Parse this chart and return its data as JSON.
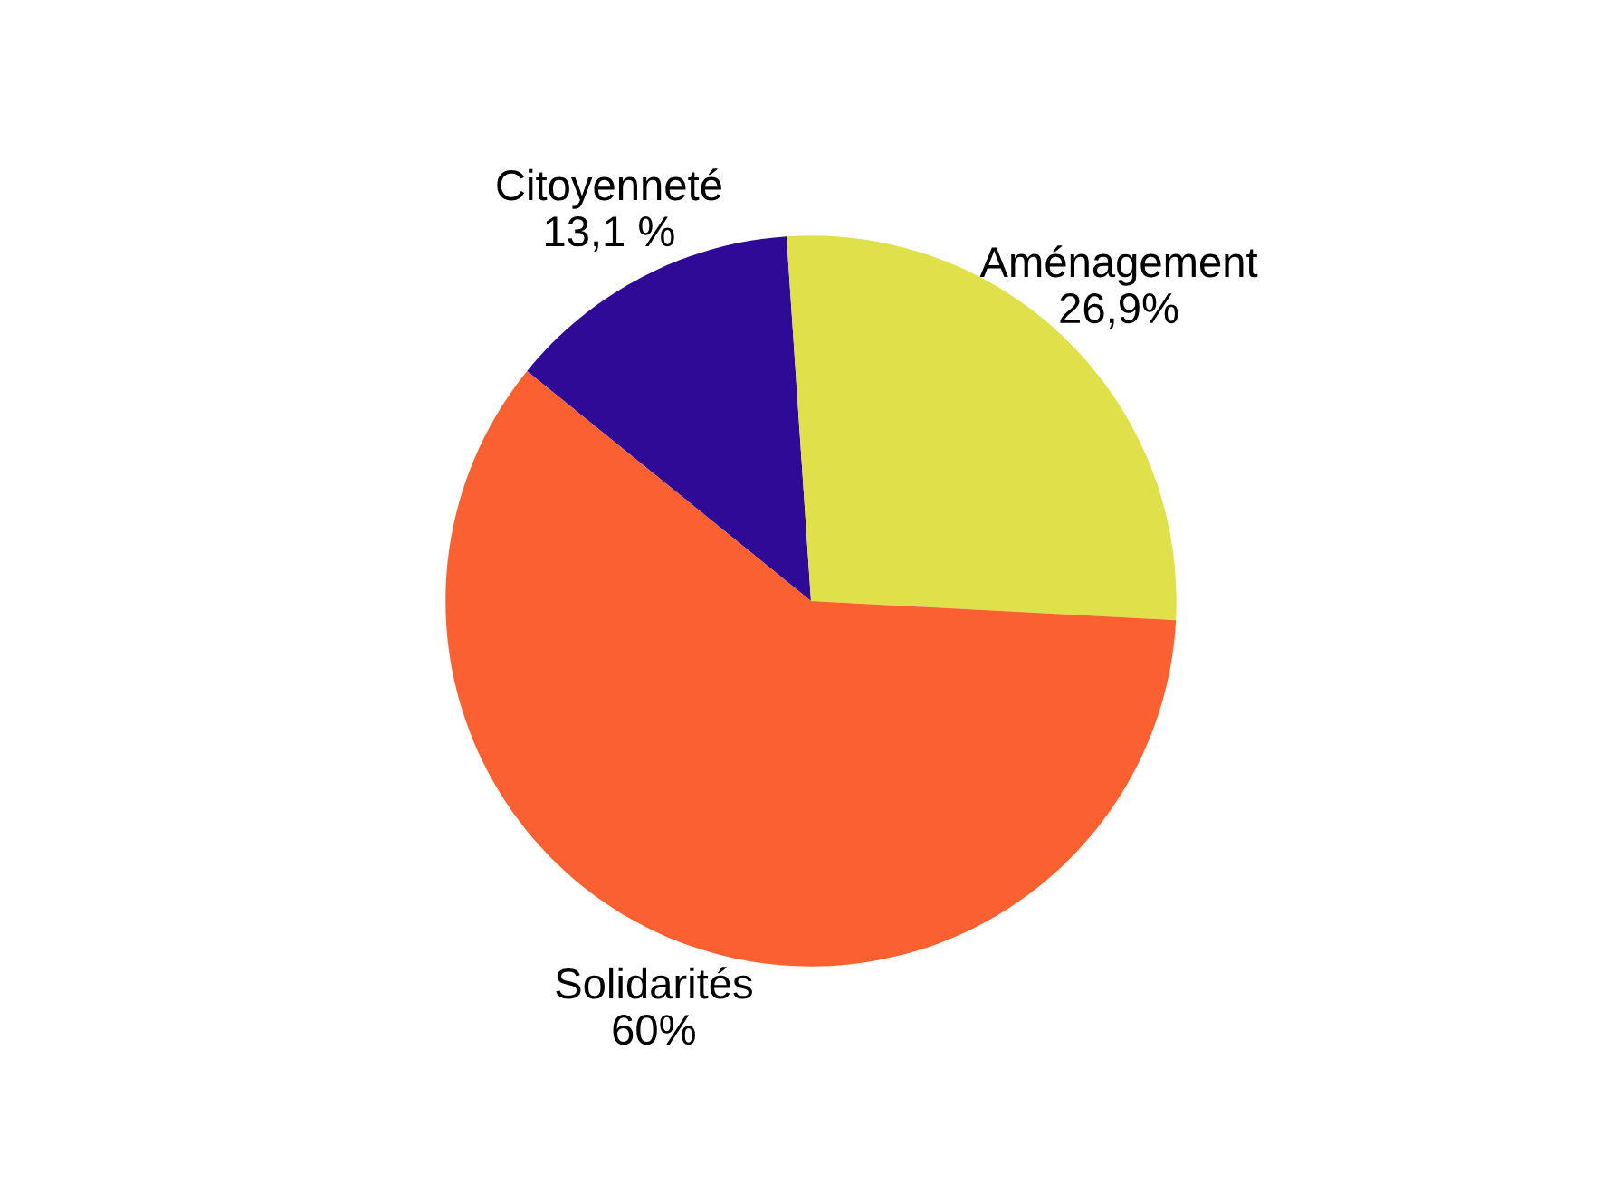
{
  "chart_data": {
    "type": "pie",
    "categories": [
      "Citoyenneté",
      "Aménagement",
      "Solidarités"
    ],
    "values": [
      13.1,
      26.9,
      60
    ],
    "value_labels": [
      "13,1 %",
      "26,9%",
      "60%"
    ],
    "colors": [
      "#2e0a96",
      "#e0e04a",
      "#fa6030"
    ]
  }
}
